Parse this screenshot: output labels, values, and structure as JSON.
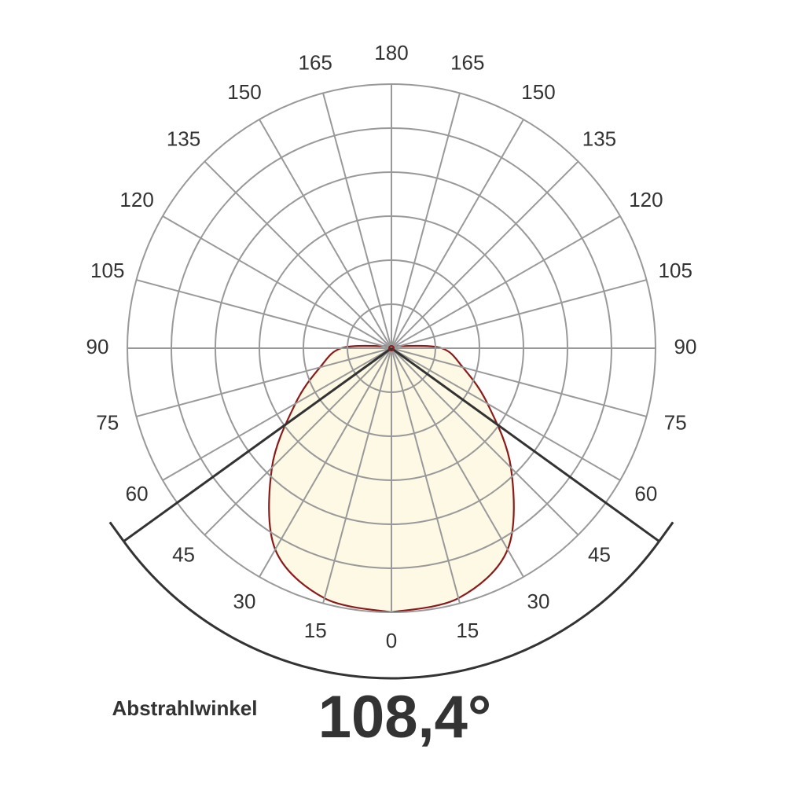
{
  "chart_data": {
    "type": "polar",
    "angles": [
      0,
      15,
      30,
      45,
      60,
      75,
      90,
      105,
      120,
      135,
      150,
      165,
      180
    ],
    "series": [
      {
        "color": "#8b1a1a",
        "values": [
          100,
          98,
          88,
          64,
          42,
          28,
          19,
          3,
          0,
          0,
          0,
          0,
          0
        ]
      }
    ],
    "rlim": [
      0,
      100
    ],
    "rings": 6,
    "angle_ticks": [
      0,
      15,
      30,
      45,
      60,
      75,
      90,
      105,
      120,
      135,
      150,
      165,
      180
    ],
    "grid": true,
    "beam": {
      "name": "Abstrahlwinkel",
      "values": [
        108.4
      ],
      "value_labels": [
        "108,4°"
      ],
      "color": "#333333"
    }
  }
}
